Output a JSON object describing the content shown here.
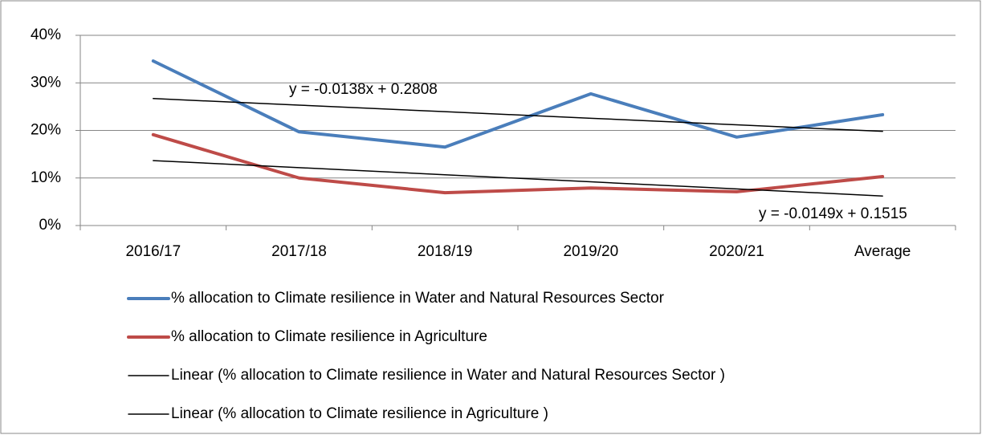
{
  "chart_data": {
    "type": "line",
    "categories": [
      "2016/17",
      "2017/18",
      "2018/19",
      "2019/20",
      "2020/21",
      "Average"
    ],
    "series": [
      {
        "name": "% allocation to Climate resilience in Water and Natural Resources Sector",
        "color": "#4a7ebb",
        "values": [
          34.6,
          19.7,
          16.5,
          27.7,
          18.6,
          23.3
        ]
      },
      {
        "name": "% allocation to Climate resilience in Agriculture",
        "color": "#be4b48",
        "values": [
          19.1,
          10.0,
          6.9,
          7.9,
          7.1,
          10.3
        ]
      },
      {
        "name": "Linear (% allocation to Climate resilience in Water and Natural Resources Sector )",
        "color": "#000000",
        "values": [
          26.7,
          25.32,
          23.94,
          22.56,
          21.18,
          19.8
        ]
      },
      {
        "name": "Linear (% allocation to Climate resilience in Agriculture )",
        "color": "#000000",
        "values": [
          13.66,
          12.17,
          10.68,
          9.19,
          7.7,
          6.21
        ]
      }
    ],
    "annotations": [
      "y = -0.0138x + 0.2808",
      "y = -0.0149x + 0.1515"
    ],
    "ylim": [
      0,
      40
    ],
    "yticks": [
      {
        "value": 0,
        "label": "0%"
      },
      {
        "value": 10,
        "label": "10%"
      },
      {
        "value": 20,
        "label": "20%"
      },
      {
        "value": 30,
        "label": "30%"
      },
      {
        "value": 40,
        "label": "40%"
      }
    ],
    "grid": true,
    "legend": "bottom"
  }
}
